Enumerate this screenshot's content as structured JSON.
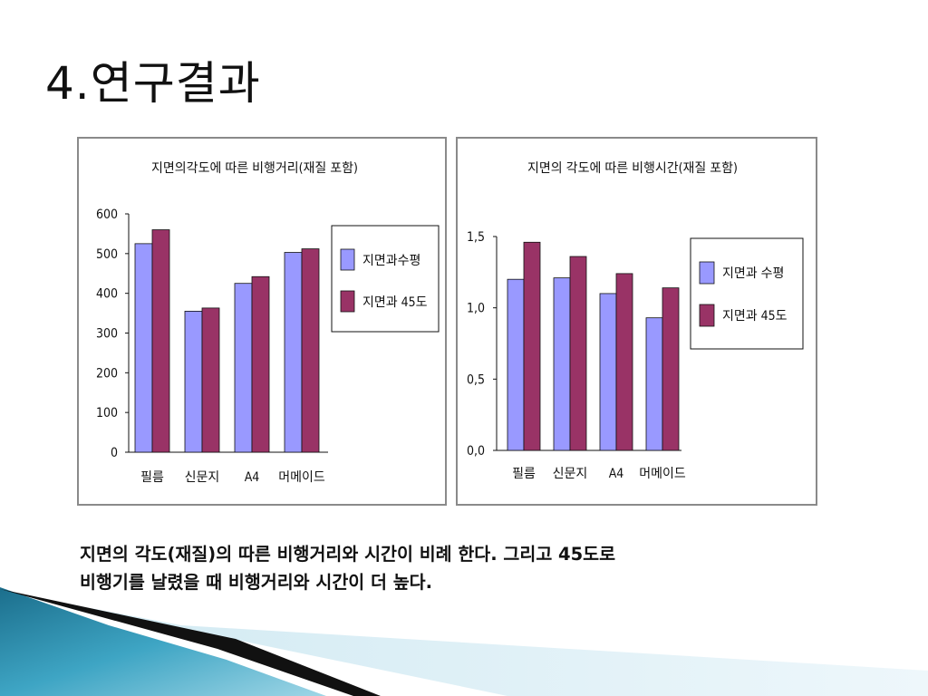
{
  "slide": {
    "title": "4.연구결과",
    "body_lines": [
      "지면의 각도(재질)의 따른 비행거리와 시간이 비례 한다. 그리고 45도로",
      "비행기를 날렸을 때 비행거리와 시간이 더 높다."
    ]
  },
  "colors": {
    "series_1": "#9999ff",
    "series_2": "#993366",
    "bar_stroke": "#111111"
  },
  "chart_data": [
    {
      "type": "bar",
      "title": "지면의각도에 따른 비행거리(재질 포함)",
      "categories": [
        "필름",
        "신문지",
        "A4",
        "머메이드"
      ],
      "series": [
        {
          "name": "지면과수평",
          "values": [
            525,
            355,
            425,
            503
          ]
        },
        {
          "name": "지면과 45도",
          "values": [
            560,
            363,
            442,
            512
          ]
        }
      ],
      "yticks": [
        "600",
        "500",
        "400",
        "300",
        "200",
        "100",
        "0"
      ],
      "ylim": [
        0,
        600
      ],
      "grid": false,
      "legend_position": "right"
    },
    {
      "type": "bar",
      "title": "지면의 각도에 따른 비행시간(재질 포함)",
      "categories": [
        "필름",
        "신문지",
        "A4",
        "머메이드"
      ],
      "series": [
        {
          "name": "지면과 수평",
          "values": [
            1.2,
            1.21,
            1.1,
            0.93
          ]
        },
        {
          "name": "지면과 45도",
          "values": [
            1.46,
            1.36,
            1.24,
            1.14
          ]
        }
      ],
      "yticks": [
        "1,5",
        "1,0",
        "0,5",
        "0,0"
      ],
      "ylim": [
        0,
        1.5
      ],
      "grid": false,
      "legend_position": "right"
    }
  ]
}
